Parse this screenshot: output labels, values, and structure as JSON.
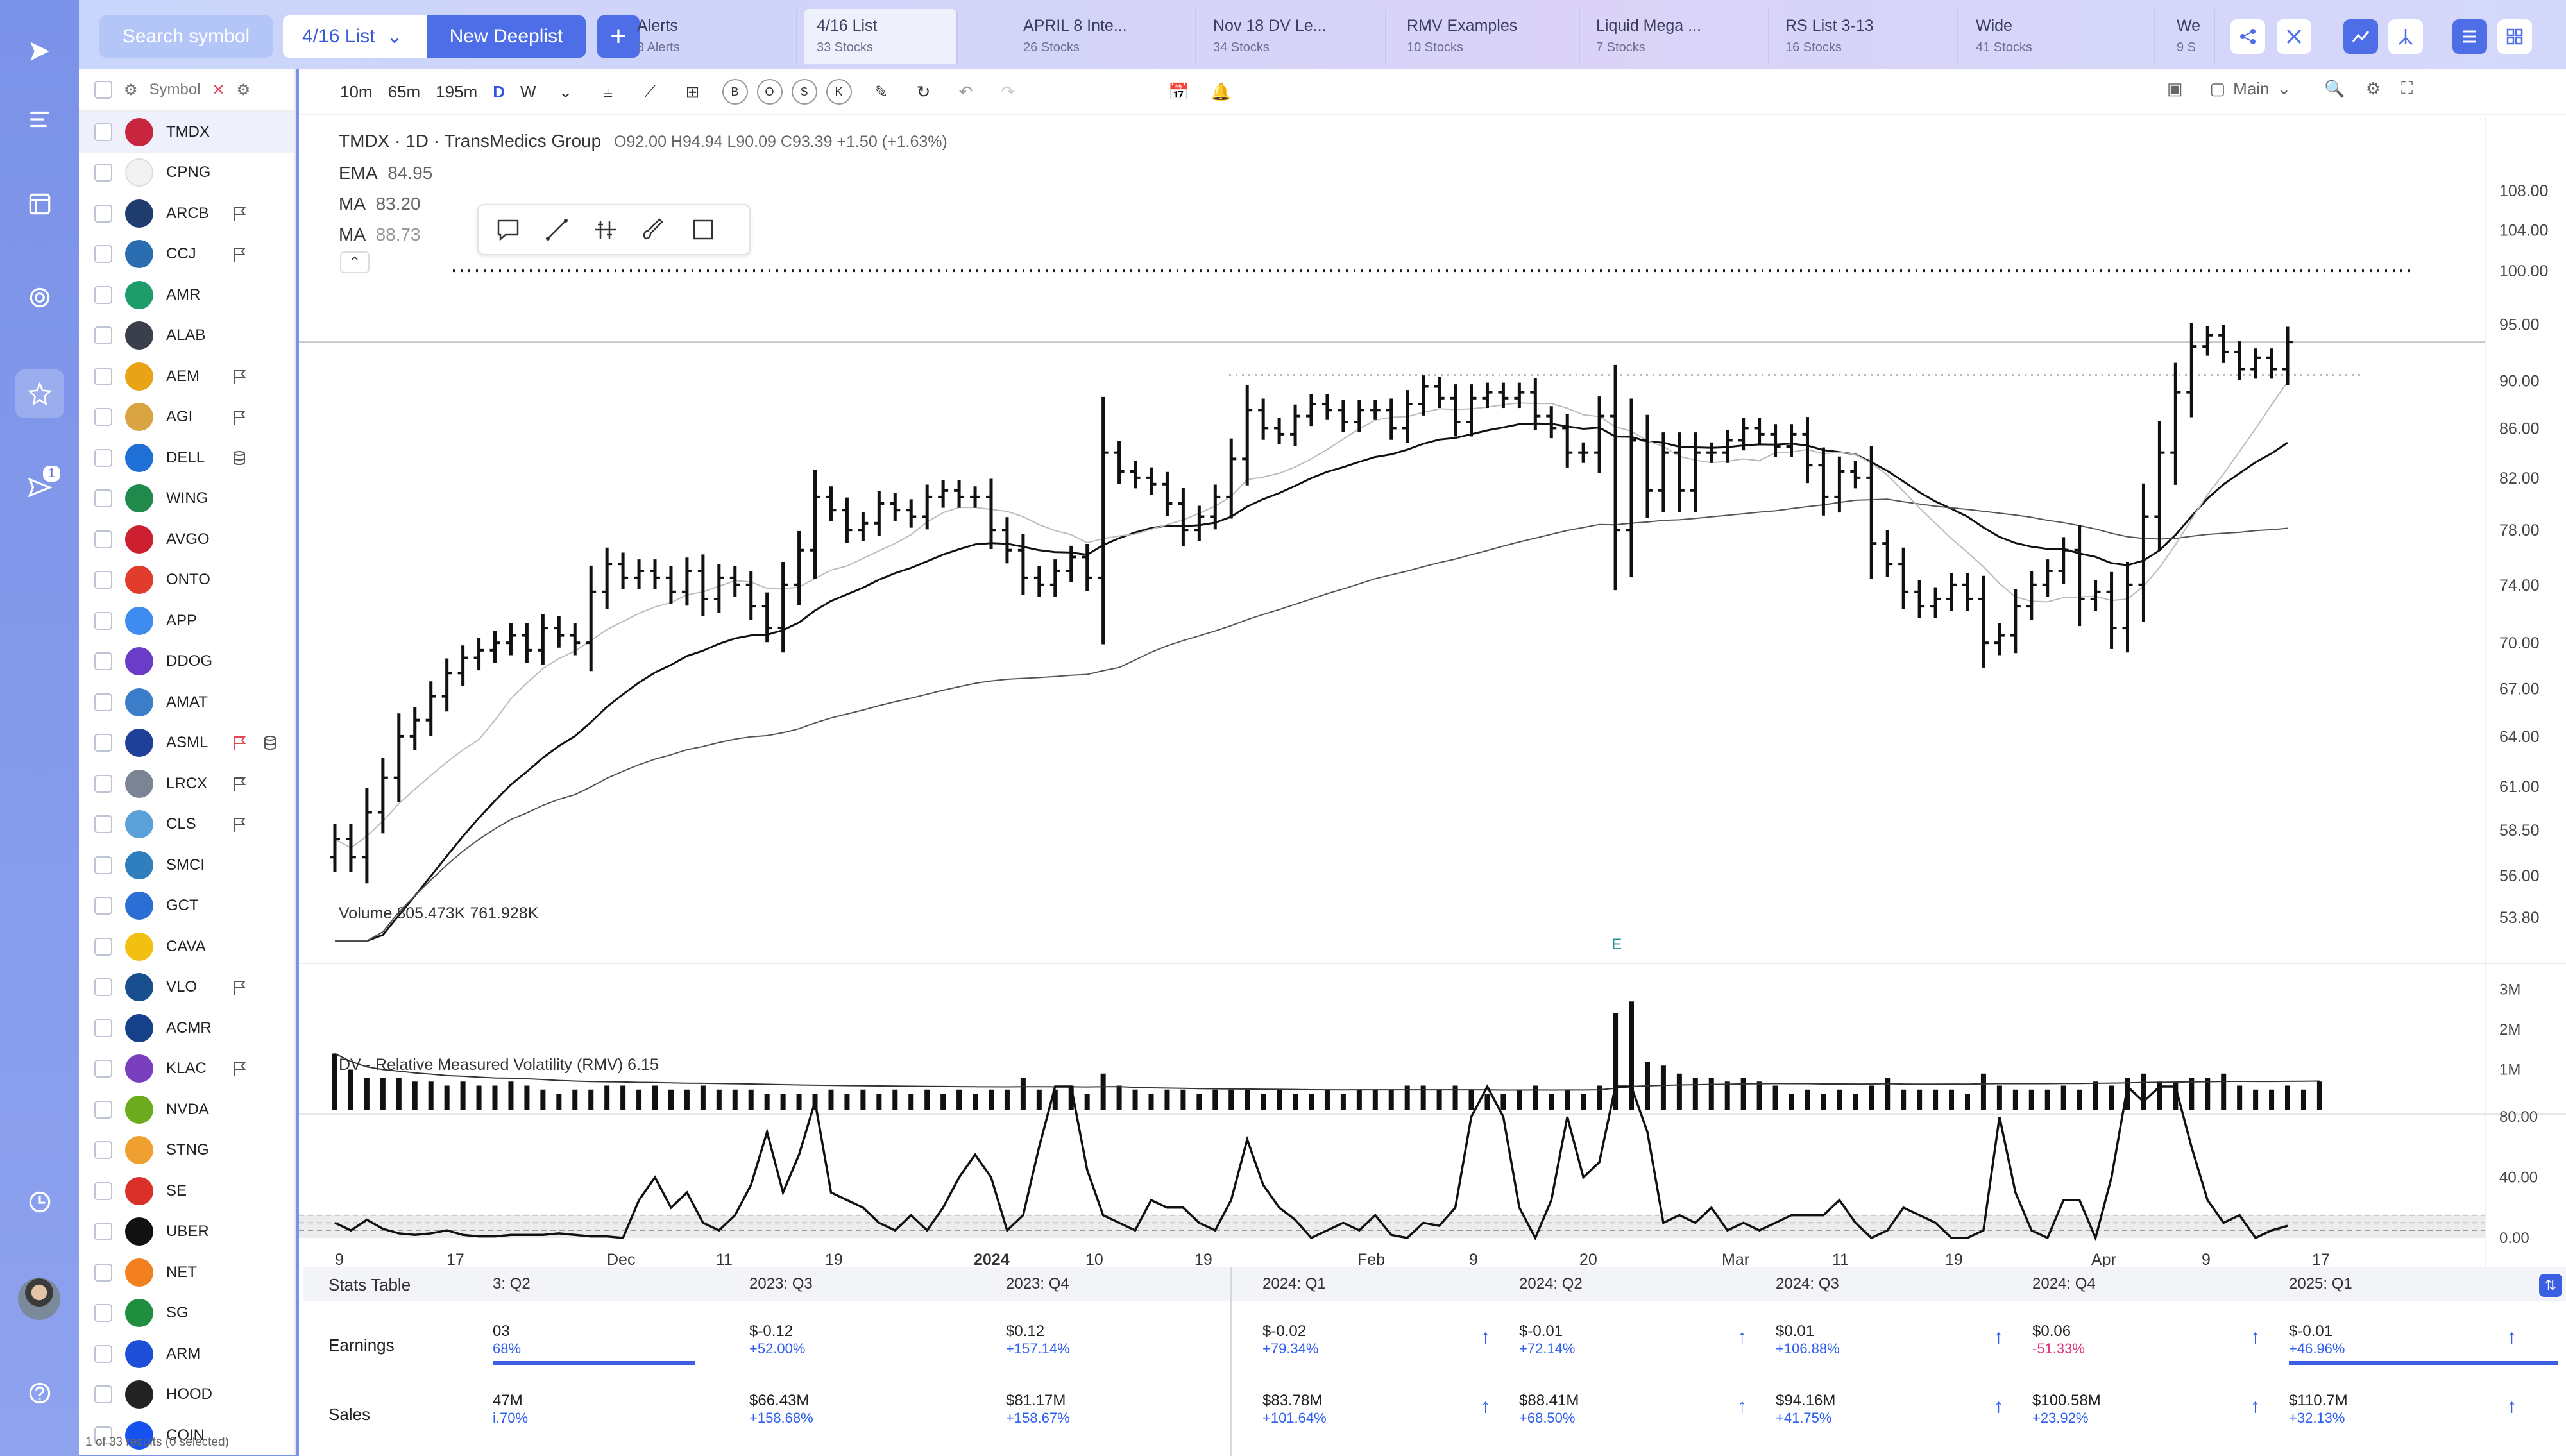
{
  "app": {
    "search_placeholder": "Search symbol",
    "current_list": "4/16 List",
    "new_deeplist": "New Deeplist"
  },
  "watchlists": [
    {
      "title": "Alerts",
      "sub": "3 Alerts"
    },
    {
      "title": "4/16 List",
      "sub": "33 Stocks"
    },
    {
      "title": "APRIL 8 Inte...",
      "sub": "26 Stocks"
    },
    {
      "title": "Nov 18 DV Le...",
      "sub": "34 Stocks"
    },
    {
      "title": "RMV Examples",
      "sub": "10 Stocks"
    },
    {
      "title": "Liquid Mega ...",
      "sub": "7 Stocks"
    },
    {
      "title": "RS List 3-13",
      "sub": "16 Stocks"
    },
    {
      "title": "Wide",
      "sub": "41 Stocks"
    },
    {
      "title": "We",
      "sub": "9 S"
    }
  ],
  "rail": {
    "badge": "1"
  },
  "symbols_header": "Symbol",
  "symbols": [
    {
      "t": "TMDX",
      "c": "#c7263e",
      "flag": false,
      "sel": true
    },
    {
      "t": "CPNG",
      "c": "#f2f2f2",
      "flag": false
    },
    {
      "t": "ARCB",
      "c": "#1f3c6e",
      "flag": true
    },
    {
      "t": "CCJ",
      "c": "#2a6db0",
      "flag": true
    },
    {
      "t": "AMR",
      "c": "#1e9d6b",
      "flag": false
    },
    {
      "t": "ALAB",
      "c": "#3a3f4b",
      "flag": false
    },
    {
      "t": "AEM",
      "c": "#e8a317",
      "flag": true
    },
    {
      "t": "AGI",
      "c": "#d9a441",
      "flag": true
    },
    {
      "t": "DELL",
      "c": "#1e6fd6",
      "flag": false,
      "db": true
    },
    {
      "t": "WING",
      "c": "#1f8a4c",
      "flag": false
    },
    {
      "t": "AVGO",
      "c": "#cc1f2f",
      "flag": false
    },
    {
      "t": "ONTO",
      "c": "#e23c2c",
      "flag": false
    },
    {
      "t": "APP",
      "c": "#3f8cf0",
      "flag": false
    },
    {
      "t": "DDOG",
      "c": "#6a3cc7",
      "flag": false
    },
    {
      "t": "AMAT",
      "c": "#3b7dc9",
      "flag": false
    },
    {
      "t": "ASML",
      "c": "#1f3f99",
      "flag": true,
      "red": true,
      "db": true
    },
    {
      "t": "LRCX",
      "c": "#7b8493",
      "flag": true
    },
    {
      "t": "CLS",
      "c": "#5aa0d9",
      "flag": true
    },
    {
      "t": "SMCI",
      "c": "#2f7fbf",
      "flag": false
    },
    {
      "t": "GCT",
      "c": "#2b6fd6",
      "flag": false
    },
    {
      "t": "CAVA",
      "c": "#f2c012",
      "flag": false
    },
    {
      "t": "VLO",
      "c": "#1a4f8f",
      "flag": true
    },
    {
      "t": "ACMR",
      "c": "#16408a",
      "flag": false
    },
    {
      "t": "KLAC",
      "c": "#7a3fbf",
      "flag": true
    },
    {
      "t": "NVDA",
      "c": "#6cab1e",
      "flag": false
    },
    {
      "t": "STNG",
      "c": "#f0a030",
      "flag": false
    },
    {
      "t": "SE",
      "c": "#d9302a",
      "flag": false
    },
    {
      "t": "UBER",
      "c": "#111111",
      "flag": false
    },
    {
      "t": "NET",
      "c": "#f38020",
      "flag": false
    },
    {
      "t": "SG",
      "c": "#1f8f3f",
      "flag": false
    },
    {
      "t": "ARM",
      "c": "#1d4fd8",
      "flag": false
    },
    {
      "t": "HOOD",
      "c": "#222222",
      "flag": false
    },
    {
      "t": "COIN",
      "c": "#1652f0",
      "flag": false
    }
  ],
  "symbols_footer": "1 of 33 results (0 selected)",
  "toolbar": {
    "intervals": [
      "10m",
      "65m",
      "195m",
      "D",
      "W"
    ],
    "toggles": [
      "B",
      "O",
      "S",
      "K"
    ],
    "layout": "Main"
  },
  "legend": {
    "header": "TMDX · 1D · TransMedics Group",
    "ohlc": "O92.00  H94.94  L90.09  C93.39  +1.50 (+1.63%)",
    "ema_label": "EMA",
    "ema_val": "84.95",
    "ma1_label": "MA",
    "ma1_val": "83.20",
    "ma2_label": "MA",
    "ma2_val": "88.73",
    "volume": "Volume  805.473K  761.928K",
    "rmv": "DV - Relative Measured Volatility (RMV)  6.15"
  },
  "chart_data": {
    "type": "ohlc",
    "symbol": "TMDX",
    "price_axis": [
      108,
      104,
      100,
      95,
      90,
      86,
      82,
      78,
      74,
      70,
      67,
      64,
      61,
      58.5,
      56,
      53.8
    ],
    "price_axis_labels": [
      "108.00",
      "104.00",
      "100.00",
      "95.00",
      "90.00",
      "86.00",
      "82.00",
      "78.00",
      "74.00",
      "70.00",
      "67.00",
      "64.00",
      "61.00",
      "58.50",
      "56.00",
      "53.80"
    ],
    "volume_axis_labels": [
      "3M",
      "2M",
      "1M"
    ],
    "rmv_axis_labels": [
      "80.00",
      "40.00",
      "0.00"
    ],
    "x_labels": [
      "9",
      "17",
      "Dec",
      "11",
      "19",
      "2024",
      "10",
      "19",
      "Feb",
      "9",
      "20",
      "Mar",
      "11",
      "19",
      "Apr",
      "9",
      "17"
    ],
    "earnings_marker": "E",
    "closes": [
      58.0,
      57.0,
      59.5,
      61.5,
      64.0,
      65.0,
      66.5,
      68.0,
      69.0,
      69.5,
      70.0,
      70.5,
      69.5,
      71.0,
      70.5,
      70.0,
      73.5,
      75.5,
      74.5,
      75.0,
      74.5,
      73.5,
      75.0,
      73.0,
      74.5,
      74.0,
      72.5,
      71.0,
      74.0,
      76.5,
      80.5,
      79.5,
      78.0,
      78.5,
      80.0,
      79.5,
      79.0,
      80.5,
      81.0,
      80.5,
      80.5,
      78.0,
      76.5,
      74.5,
      74.0,
      75.0,
      76.0,
      74.5,
      84.0,
      82.5,
      82.0,
      81.5,
      80.0,
      78.0,
      79.0,
      80.5,
      83.5,
      87.5,
      86.0,
      85.5,
      87.0,
      88.0,
      87.5,
      86.5,
      87.5,
      87.5,
      86.0,
      88.0,
      89.5,
      88.5,
      86.5,
      88.5,
      89.0,
      88.5,
      89.0,
      87.0,
      86.0,
      84.0,
      84.0,
      87.0,
      78.0,
      85.0,
      81.0,
      84.0,
      81.0,
      84.0,
      84.0,
      85.0,
      86.0,
      85.5,
      84.5,
      85.5,
      83.0,
      80.5,
      82.5,
      82.0,
      77.0,
      75.5,
      73.5,
      72.5,
      73.0,
      74.0,
      73.0,
      70.0,
      70.5,
      72.5,
      74.0,
      75.0,
      76.5,
      73.0,
      73.5,
      71.0,
      74.0,
      79.0,
      84.0,
      89.0,
      93.0,
      94.0,
      92.5,
      91.0,
      92.0,
      91.0,
      93.4
    ],
    "volumes": [
      1.4,
      1.0,
      0.8,
      0.8,
      0.8,
      0.7,
      0.7,
      0.6,
      0.7,
      0.6,
      0.6,
      0.7,
      0.6,
      0.5,
      0.4,
      0.5,
      0.5,
      0.6,
      0.6,
      0.5,
      0.6,
      0.5,
      0.5,
      0.6,
      0.5,
      0.5,
      0.5,
      0.4,
      0.4,
      0.4,
      0.4,
      0.5,
      0.4,
      0.5,
      0.4,
      0.5,
      0.4,
      0.5,
      0.4,
      0.5,
      0.4,
      0.5,
      0.5,
      0.8,
      0.5,
      0.5,
      0.6,
      0.4,
      0.9,
      0.6,
      0.5,
      0.4,
      0.5,
      0.5,
      0.4,
      0.5,
      0.5,
      0.5,
      0.4,
      0.5,
      0.4,
      0.4,
      0.5,
      0.4,
      0.5,
      0.5,
      0.5,
      0.6,
      0.6,
      0.5,
      0.6,
      0.5,
      0.4,
      0.4,
      0.5,
      0.6,
      0.4,
      0.5,
      0.4,
      0.6,
      2.4,
      2.7,
      1.2,
      1.1,
      0.9,
      0.8,
      0.8,
      0.7,
      0.8,
      0.7,
      0.6,
      0.4,
      0.5,
      0.4,
      0.5,
      0.4,
      0.6,
      0.8,
      0.5,
      0.5,
      0.5,
      0.5,
      0.4,
      0.9,
      0.6,
      0.5,
      0.5,
      0.5,
      0.6,
      0.5,
      0.7,
      0.6,
      0.8,
      0.9,
      0.7,
      0.7,
      0.8,
      0.8,
      0.9,
      0.6,
      0.5,
      0.5,
      0.6,
      0.5,
      0.7
    ],
    "rmv": [
      10,
      5,
      12,
      6,
      3,
      2,
      3,
      5,
      2,
      1,
      1,
      2,
      2,
      2,
      3,
      2,
      1,
      1,
      0,
      25,
      40,
      20,
      30,
      10,
      5,
      15,
      35,
      70,
      30,
      55,
      90,
      30,
      25,
      20,
      10,
      5,
      15,
      5,
      20,
      40,
      55,
      40,
      5,
      15,
      60,
      100,
      100,
      45,
      15,
      10,
      5,
      25,
      20,
      20,
      10,
      5,
      25,
      65,
      35,
      20,
      12,
      0,
      5,
      10,
      5,
      15,
      2,
      0,
      10,
      8,
      20,
      80,
      100,
      80,
      20,
      0,
      25,
      80,
      40,
      50,
      100,
      100,
      70,
      10,
      15,
      10,
      20,
      5,
      10,
      5,
      10,
      15,
      15,
      15,
      25,
      10,
      0,
      5,
      20,
      15,
      10,
      0,
      0,
      5,
      80,
      30,
      5,
      0,
      25,
      25,
      0,
      40,
      100,
      90,
      100,
      100,
      60,
      25,
      10,
      15,
      0,
      5,
      8
    ],
    "stats": {
      "header": "Stats Table",
      "columns": [
        "3: Q2",
        "2023: Q3",
        "2023: Q4",
        "2024: Q1",
        "2024: Q2",
        "2024: Q3",
        "2024: Q4",
        "2025: Q1"
      ],
      "earnings_label": "Earnings",
      "sales_label": "Sales",
      "earnings": [
        [
          "03",
          "68%"
        ],
        [
          "$-0.12",
          "+52.00%"
        ],
        [
          "$0.12",
          "+157.14%"
        ],
        [
          "$-0.02",
          "+79.34%"
        ],
        [
          "$-0.01",
          "+72.14%"
        ],
        [
          "$0.01",
          "+106.88%"
        ],
        [
          "$0.06",
          "-51.33%"
        ],
        [
          "$-0.01",
          "+46.96%"
        ]
      ],
      "sales": [
        [
          "47M",
          "i.70%"
        ],
        [
          "$66.43M",
          "+158.68%"
        ],
        [
          "$81.17M",
          "+158.67%"
        ],
        [
          "$83.78M",
          "+101.64%"
        ],
        [
          "$88.41M",
          "+68.50%"
        ],
        [
          "$94.16M",
          "+41.75%"
        ],
        [
          "$100.58M",
          "+23.92%"
        ],
        [
          "$110.7M",
          "+32.13%"
        ]
      ]
    }
  }
}
